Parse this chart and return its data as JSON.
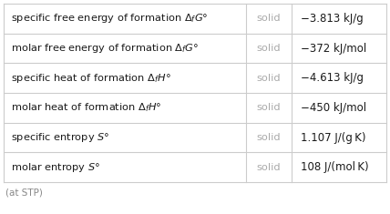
{
  "rows": [
    {
      "property": "specific free energy of formation $\\Delta_f G°$",
      "state": "solid",
      "value": "−3.813 kJ/g"
    },
    {
      "property": "molar free energy of formation $\\Delta_f G°$",
      "state": "solid",
      "value": "−372 kJ/mol"
    },
    {
      "property": "specific heat of formation $\\Delta_f H°$",
      "state": "solid",
      "value": "−4.613 kJ/g"
    },
    {
      "property": "molar heat of formation $\\Delta_f H°$",
      "state": "solid",
      "value": "−450 kJ/mol"
    },
    {
      "property": "specific entropy $S°$",
      "state": "solid",
      "value": "1.107 J/(g K)"
    },
    {
      "property": "molar entropy $S°$",
      "state": "solid",
      "value": "108 J/(mol K)"
    }
  ],
  "footer": "(at STP)",
  "bg_color": "#ffffff",
  "line_color": "#cccccc",
  "property_color": "#1a1a1a",
  "state_color": "#aaaaaa",
  "value_color": "#1a1a1a",
  "footer_color": "#888888"
}
